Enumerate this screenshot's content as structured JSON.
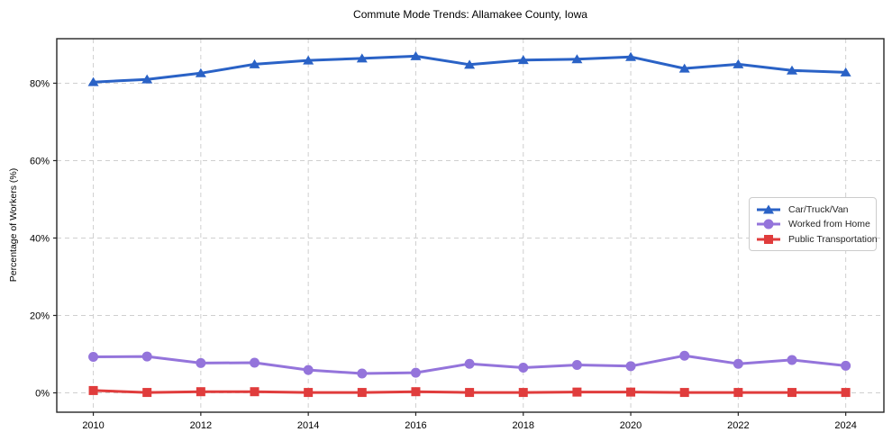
{
  "chart_data": {
    "type": "line",
    "title": "Commute Mode Trends: Allamakee County, Iowa",
    "xlabel": "",
    "ylabel": "Percentage of Workers (%)",
    "x": [
      2010,
      2011,
      2012,
      2013,
      2014,
      2015,
      2016,
      2017,
      2018,
      2019,
      2020,
      2021,
      2022,
      2023,
      2024
    ],
    "x_tick_labels": [
      "2010",
      "2012",
      "2014",
      "2016",
      "2018",
      "2020",
      "2022",
      "2024"
    ],
    "y_ticks": [
      0,
      20,
      40,
      60,
      80
    ],
    "y_tick_suffix": "%",
    "xlim": [
      2009.32,
      2024.71
    ],
    "ylim": [
      -5,
      91.5
    ],
    "grid": true,
    "grid_color": "#cfcfcf",
    "spine_color": "#262626",
    "legend_position": "center right",
    "series": [
      {
        "name": "Car/Truck/Van",
        "color": "#2a62c6",
        "marker": "triangle",
        "values": [
          80.3,
          81.0,
          82.6,
          84.9,
          85.9,
          86.4,
          87.0,
          84.8,
          86.0,
          86.2,
          86.8,
          83.8,
          84.9,
          83.3,
          82.8
        ]
      },
      {
        "name": "Worked from Home",
        "color": "#9474db",
        "marker": "circle",
        "values": [
          9.3,
          9.4,
          7.7,
          7.8,
          5.9,
          5.0,
          5.2,
          7.5,
          6.5,
          7.2,
          6.9,
          9.6,
          7.5,
          8.5,
          7.0
        ]
      },
      {
        "name": "Public Transportation",
        "color": "#e03c3c",
        "marker": "square",
        "values": [
          0.6,
          0.1,
          0.3,
          0.3,
          0.1,
          0.1,
          0.3,
          0.1,
          0.1,
          0.2,
          0.2,
          0.1,
          0.1,
          0.1,
          0.1
        ]
      }
    ]
  }
}
